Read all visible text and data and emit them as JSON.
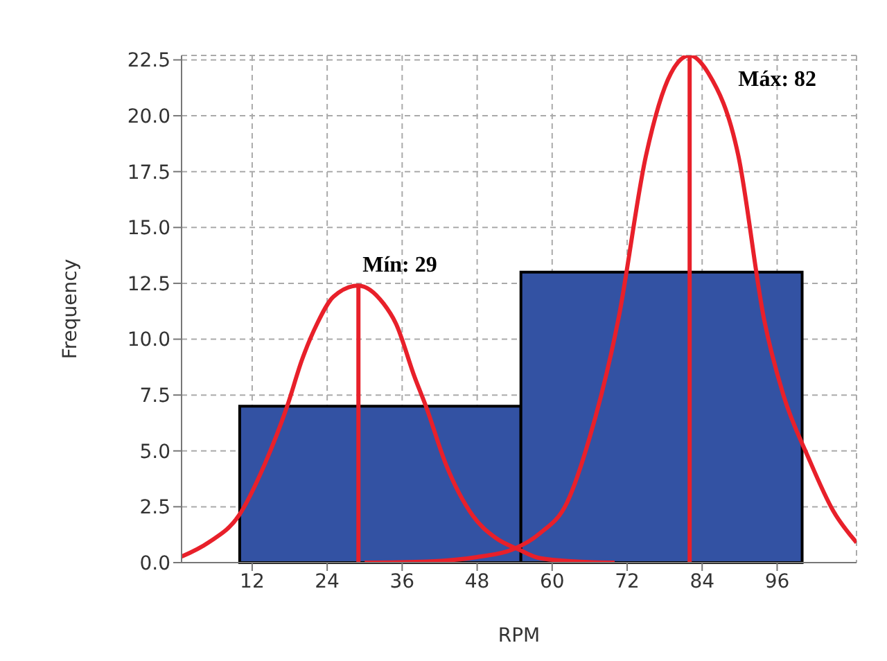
{
  "chart_data": {
    "type": "histogram",
    "xlabel": "RPM",
    "ylabel": "Frequency",
    "bins": [
      10,
      55,
      100
    ],
    "values": [
      7,
      13
    ],
    "color": "#3352a3",
    "series": [
      {
        "type": "line",
        "color": "#e8202a",
        "x": [
          0.7,
          5,
          9.85,
          14,
          17.6,
          20,
          22.4,
          25,
          29,
          33,
          35,
          38,
          39.8,
          43,
          47.3,
          51,
          54.7,
          58,
          64,
          70
        ],
        "values": [
          0.27,
          0.9,
          2.1,
          4.4,
          7.0,
          9.1,
          10.7,
          11.9,
          12.4,
          11.6,
          10.7,
          8.3,
          7.0,
          4.4,
          2.1,
          1.1,
          0.58,
          0.2,
          0.05,
          0
        ]
      },
      {
        "type": "line",
        "color": "#e8202a",
        "x": [
          30,
          40,
          48,
          53.6,
          58,
          62.4,
          66,
          70.6,
          75,
          79,
          82,
          85,
          89.8,
          93.9,
          97,
          101,
          105,
          108.7
        ],
        "values": [
          0,
          0.05,
          0.25,
          0.58,
          1.3,
          2.7,
          5.6,
          10.9,
          18.2,
          21.9,
          22.7,
          21.9,
          18.2,
          10.9,
          7.5,
          4.7,
          2.3,
          0.9
        ]
      },
      {
        "type": "line",
        "color": "#e8202a",
        "x": [
          29,
          29
        ],
        "values": [
          0,
          12.4
        ]
      },
      {
        "type": "line",
        "color": "#e8202a",
        "x": [
          82,
          82
        ],
        "values": [
          0,
          22.7
        ]
      }
    ],
    "annotations": [
      {
        "text": "Mín: 29",
        "x": 29,
        "y": 12.4
      },
      {
        "text": "Máx: 82",
        "x": 82,
        "y": 22.7
      }
    ],
    "xlim": [
      0.7,
      108.7
    ],
    "xticks": [
      12,
      24,
      36,
      48,
      60,
      72,
      84,
      96
    ],
    "ylim": [
      0,
      22.7
    ],
    "yticks": [
      {
        "value": 0,
        "label": "0.0"
      },
      2.5,
      {
        "value": 5,
        "label": "5.0"
      },
      7.5,
      {
        "value": 10,
        "label": "10.0"
      },
      12.5,
      {
        "value": 15,
        "label": "15.0"
      },
      17.5,
      {
        "value": 20,
        "label": "20.0"
      },
      22.5
    ],
    "grid": true,
    "marker": "none"
  }
}
